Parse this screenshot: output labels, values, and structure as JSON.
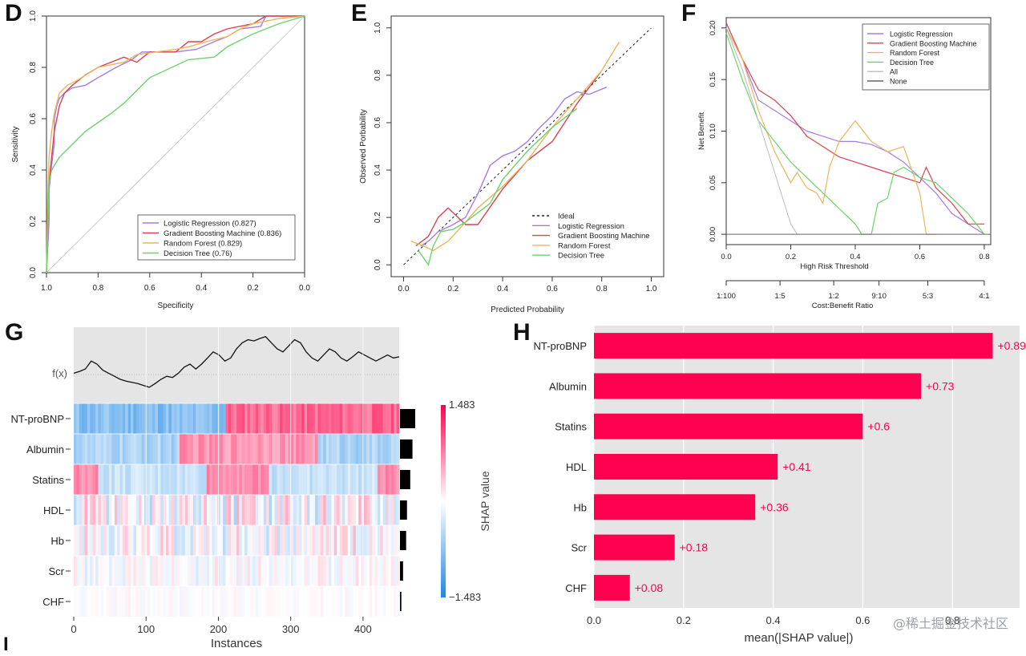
{
  "panel_labels": {
    "d": "D",
    "e": "E",
    "f": "F",
    "g": "G",
    "h": "H",
    "i": "I"
  },
  "watermark": "@稀土掘金技术社区",
  "colors": {
    "lr": "#A77BE3",
    "gbm": "#D9424F",
    "rf": "#E9B65B",
    "dt": "#6CD36B",
    "shap_pos": "#FF0051",
    "shap_neg": "#1E88E5",
    "grid_bg": "#E5E5E5"
  },
  "chart_data": [
    {
      "id": "roc",
      "type": "line",
      "title": "",
      "xlabel": "Specificity",
      "ylabel": "Sensitivity",
      "xlim": [
        1.0,
        0.0
      ],
      "ylim": [
        0,
        1
      ],
      "xticks": [
        "1.0",
        "0.8",
        "0.6",
        "0.4",
        "0.2",
        "0.0"
      ],
      "yticks": [
        "0.0",
        "0.2",
        "0.4",
        "0.6",
        "0.8",
        "1.0"
      ],
      "legend": [
        "Logistic Regression (0.827)",
        "Gradient Boosting Machine (0.836)",
        "Random Forest (0.829)",
        "Decision Tree (0.76)"
      ],
      "series": [
        {
          "name": "Logistic Regression",
          "x": [
            1.0,
            0.99,
            0.99,
            0.98,
            0.97,
            0.97,
            0.96,
            0.95,
            0.93,
            0.9,
            0.85,
            0.8,
            0.73,
            0.67,
            0.63,
            0.58,
            0.5,
            0.42,
            0.35,
            0.3,
            0.25,
            0.17,
            0.15,
            0.1,
            0.05,
            0.0
          ],
          "y": [
            0.0,
            0.2,
            0.32,
            0.42,
            0.5,
            0.6,
            0.65,
            0.68,
            0.7,
            0.72,
            0.73,
            0.76,
            0.8,
            0.83,
            0.86,
            0.86,
            0.86,
            0.87,
            0.9,
            0.92,
            0.95,
            0.96,
            1.0,
            1.0,
            1.0,
            1.0
          ]
        },
        {
          "name": "Gradient Boosting Machine",
          "x": [
            1.0,
            0.99,
            0.98,
            0.97,
            0.96,
            0.95,
            0.93,
            0.9,
            0.85,
            0.8,
            0.7,
            0.65,
            0.6,
            0.5,
            0.45,
            0.4,
            0.35,
            0.3,
            0.2,
            0.15,
            0.1,
            0.0
          ],
          "y": [
            0.0,
            0.35,
            0.45,
            0.55,
            0.6,
            0.65,
            0.7,
            0.73,
            0.77,
            0.8,
            0.84,
            0.82,
            0.86,
            0.86,
            0.9,
            0.9,
            0.93,
            0.95,
            0.97,
            1.0,
            1.0,
            1.0
          ]
        },
        {
          "name": "Random Forest",
          "x": [
            1.0,
            0.995,
            0.99,
            0.98,
            0.97,
            0.95,
            0.92,
            0.88,
            0.8,
            0.7,
            0.65,
            0.5,
            0.45,
            0.38,
            0.3,
            0.25,
            0.2,
            0.1,
            0.0
          ],
          "y": [
            0.0,
            0.3,
            0.45,
            0.55,
            0.62,
            0.7,
            0.73,
            0.75,
            0.8,
            0.82,
            0.85,
            0.87,
            0.88,
            0.9,
            0.92,
            0.95,
            0.97,
            0.99,
            1.0
          ]
        },
        {
          "name": "Decision Tree",
          "x": [
            1.0,
            0.99,
            0.98,
            0.95,
            0.9,
            0.85,
            0.75,
            0.7,
            0.6,
            0.45,
            0.35,
            0.3,
            0.2,
            0.1,
            0.0
          ],
          "y": [
            0.0,
            0.35,
            0.4,
            0.45,
            0.5,
            0.55,
            0.62,
            0.66,
            0.76,
            0.83,
            0.84,
            0.88,
            0.93,
            0.97,
            1.0
          ]
        },
        {
          "name": "Reference",
          "x": [
            1.0,
            0.0
          ],
          "y": [
            0.0,
            1.0
          ]
        }
      ]
    },
    {
      "id": "calibration",
      "type": "line",
      "xlabel": "Predicted Probability",
      "ylabel": "Observed Porbability",
      "xlim": [
        0,
        1
      ],
      "ylim": [
        0,
        1
      ],
      "xticks": [
        "0.0",
        "0.2",
        "0.4",
        "0.6",
        "0.8",
        "1.0"
      ],
      "yticks": [
        "0.0",
        "0.2",
        "0.4",
        "0.6",
        "0.8",
        "1.0"
      ],
      "legend": [
        "Ideal",
        "Logistic Regression",
        "Gradient Boosting Machine",
        "Random Forest",
        "Decision Tree"
      ],
      "series": [
        {
          "name": "Ideal",
          "x": [
            0,
            1
          ],
          "y": [
            0,
            1
          ]
        },
        {
          "name": "Logistic Regression",
          "x": [
            0.07,
            0.1,
            0.14,
            0.2,
            0.25,
            0.3,
            0.35,
            0.4,
            0.45,
            0.5,
            0.55,
            0.6,
            0.65,
            0.7,
            0.75,
            0.82
          ],
          "y": [
            0.08,
            0.1,
            0.14,
            0.17,
            0.2,
            0.3,
            0.42,
            0.46,
            0.48,
            0.52,
            0.58,
            0.63,
            0.7,
            0.73,
            0.72,
            0.75
          ]
        },
        {
          "name": "Gradient Boosting Machine",
          "x": [
            0.05,
            0.1,
            0.14,
            0.18,
            0.2,
            0.25,
            0.3,
            0.4,
            0.5,
            0.6,
            0.65,
            0.7,
            0.8
          ],
          "y": [
            0.08,
            0.12,
            0.2,
            0.24,
            0.22,
            0.17,
            0.17,
            0.32,
            0.44,
            0.52,
            0.6,
            0.68,
            0.82
          ]
        },
        {
          "name": "Random Forest",
          "x": [
            0.03,
            0.08,
            0.12,
            0.18,
            0.25,
            0.3,
            0.4,
            0.5,
            0.6,
            0.7,
            0.8,
            0.87
          ],
          "y": [
            0.1,
            0.08,
            0.06,
            0.1,
            0.18,
            0.24,
            0.33,
            0.44,
            0.58,
            0.7,
            0.82,
            0.94
          ]
        },
        {
          "name": "Decision Tree",
          "x": [
            0.06,
            0.1,
            0.12,
            0.15,
            0.2,
            0.25,
            0.3,
            0.35,
            0.4,
            0.45,
            0.5,
            0.6,
            0.7
          ],
          "y": [
            0.06,
            0.0,
            0.08,
            0.14,
            0.15,
            0.18,
            0.22,
            0.26,
            0.36,
            0.42,
            0.48,
            0.58,
            0.66
          ]
        }
      ]
    },
    {
      "id": "dca",
      "type": "line",
      "xlabel": "High Risk Threshold",
      "ylabel": "Net Benefit",
      "x2label": "Cost:Benefit Ratio",
      "xlim": [
        0,
        0.82
      ],
      "ylim": [
        -0.01,
        0.21
      ],
      "xticks": [
        "0.0",
        "0.2",
        "0.4",
        "0.6",
        "0.8"
      ],
      "x2ticks": [
        "1:100",
        "1:5",
        "1:2",
        "9:10",
        "5:3",
        "4:1"
      ],
      "yticks": [
        "0.00",
        "0.05",
        "0.10",
        "0.15",
        "0.20"
      ],
      "legend": [
        "Logistic Regression",
        "Gradient Boosting Machine",
        "Random Forest",
        "Decision Tree",
        "All",
        "None"
      ],
      "series": [
        {
          "name": "Logistic Regression",
          "x": [
            0.0,
            0.05,
            0.1,
            0.15,
            0.2,
            0.25,
            0.3,
            0.35,
            0.4,
            0.45,
            0.5,
            0.55,
            0.6,
            0.65,
            0.7,
            0.75,
            0.8
          ],
          "y": [
            0.2,
            0.17,
            0.13,
            0.12,
            0.11,
            0.1,
            0.095,
            0.09,
            0.09,
            0.087,
            0.08,
            0.07,
            0.055,
            0.04,
            0.02,
            0.01,
            0.0
          ]
        },
        {
          "name": "Gradient Boosting Machine",
          "x": [
            0.0,
            0.05,
            0.1,
            0.15,
            0.2,
            0.25,
            0.3,
            0.35,
            0.4,
            0.45,
            0.5,
            0.55,
            0.6,
            0.62,
            0.65,
            0.7,
            0.75,
            0.8
          ],
          "y": [
            0.205,
            0.17,
            0.14,
            0.13,
            0.115,
            0.095,
            0.085,
            0.075,
            0.07,
            0.065,
            0.06,
            0.055,
            0.05,
            0.065,
            0.045,
            0.03,
            0.01,
            0.01
          ]
        },
        {
          "name": "Random Forest",
          "x": [
            0.0,
            0.05,
            0.1,
            0.15,
            0.2,
            0.22,
            0.25,
            0.28,
            0.3,
            0.32,
            0.35,
            0.4,
            0.45,
            0.5,
            0.55,
            0.6,
            0.62,
            0.65
          ],
          "y": [
            0.2,
            0.17,
            0.12,
            0.08,
            0.05,
            0.06,
            0.045,
            0.04,
            0.03,
            0.065,
            0.09,
            0.11,
            0.09,
            0.08,
            0.085,
            0.04,
            0.0,
            0.0
          ]
        },
        {
          "name": "Decision Tree",
          "x": [
            0.0,
            0.05,
            0.1,
            0.15,
            0.2,
            0.25,
            0.3,
            0.35,
            0.4,
            0.42,
            0.45,
            0.47,
            0.5,
            0.52,
            0.55,
            0.6,
            0.65,
            0.7,
            0.75,
            0.8
          ],
          "y": [
            0.195,
            0.15,
            0.11,
            0.09,
            0.07,
            0.055,
            0.04,
            0.025,
            0.01,
            0.0,
            0.0,
            0.03,
            0.035,
            0.06,
            0.065,
            0.055,
            0.05,
            0.035,
            0.02,
            0.0
          ]
        },
        {
          "name": "All",
          "x": [
            0.0,
            0.05,
            0.1,
            0.15,
            0.2,
            0.22
          ],
          "y": [
            0.2,
            0.16,
            0.11,
            0.06,
            0.01,
            0.0
          ]
        },
        {
          "name": "None",
          "x": [
            0.0,
            0.82
          ],
          "y": [
            0.0,
            0.0
          ]
        }
      ]
    },
    {
      "id": "shap_heatmap",
      "type": "heatmap",
      "xlabel": "Instances",
      "fx_label": "f(x)",
      "colorbar_label": "SHAP value",
      "colorbar_max": "1.483",
      "colorbar_min": "−1.483",
      "xlim": [
        0,
        450
      ],
      "xticks": [
        "0",
        "100",
        "200",
        "300",
        "400"
      ],
      "features": [
        "NT-proBNP",
        "Albumin",
        "Statins",
        "HDL",
        "Hb",
        "Scr",
        "CHF"
      ],
      "mean_abs": [
        0.89,
        0.73,
        0.6,
        0.41,
        0.36,
        0.18,
        0.08
      ],
      "fx": [
        0.35,
        0.38,
        0.42,
        0.55,
        0.5,
        0.4,
        0.35,
        0.3,
        0.25,
        0.22,
        0.2,
        0.18,
        0.15,
        0.12,
        0.18,
        0.25,
        0.3,
        0.28,
        0.35,
        0.45,
        0.5,
        0.42,
        0.5,
        0.6,
        0.7,
        0.65,
        0.55,
        0.6,
        0.75,
        0.85,
        0.9,
        0.88,
        0.92,
        0.95,
        0.85,
        0.75,
        0.7,
        0.8,
        0.9,
        0.85,
        0.7,
        0.6,
        0.55,
        0.65,
        0.75,
        0.7,
        0.6,
        0.55,
        0.62,
        0.7,
        0.65,
        0.6,
        0.55,
        0.6,
        0.65,
        0.6,
        0.62
      ]
    },
    {
      "id": "shap_bar",
      "type": "bar",
      "orientation": "horizontal",
      "xlabel": "mean(|SHAP value|)",
      "xlim": [
        0,
        0.95
      ],
      "xticks": [
        "0.0",
        "0.2",
        "0.4",
        "0.6",
        "0.8"
      ],
      "categories": [
        "NT-proBNP",
        "Albumin",
        "Statins",
        "HDL",
        "Hb",
        "Scr",
        "CHF"
      ],
      "values": [
        0.89,
        0.73,
        0.6,
        0.41,
        0.36,
        0.18,
        0.08
      ],
      "labels": [
        "+0.89",
        "+0.73",
        "+0.6",
        "+0.41",
        "+0.36",
        "+0.18",
        "+0.08"
      ]
    }
  ]
}
